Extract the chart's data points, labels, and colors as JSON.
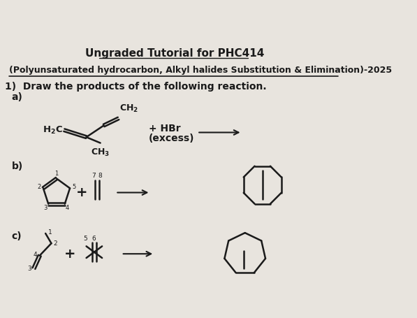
{
  "title1": "Ungraded Tutorial for PHC414",
  "title2": "(Polyunsaturated hydrocarbon, Alkyl halides Substitution & Elimination)-2025",
  "question": "1)  Draw the products of the following reaction.",
  "part_a": "a)",
  "part_b": "b)",
  "part_c": "c)",
  "hbr_text": "+ HBr",
  "excess_text": "(excess)",
  "bg_color": "#e8e4de",
  "text_color": "#1a1a1a",
  "title1_fontsize": 11,
  "title2_fontsize": 9,
  "body_fontsize": 10,
  "small_fontsize": 8.5,
  "chem_fontsize": 9,
  "num_fontsize": 6.5
}
